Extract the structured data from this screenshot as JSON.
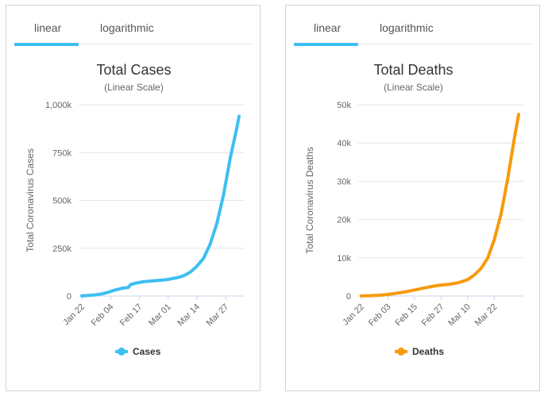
{
  "panels": [
    {
      "tabs": [
        "linear",
        "logarithmic"
      ],
      "active_tab": "linear",
      "accent_color": "#3dbff2",
      "chart_data": {
        "type": "line",
        "title": "Total Cases",
        "subtitle": "(Linear Scale)",
        "ylabel": "Total Coronavirus Cases",
        "xlabel": "",
        "ylim": [
          0,
          1000000
        ],
        "y_ticks": [
          0,
          250000,
          500000,
          750000,
          1000000
        ],
        "y_tick_labels": [
          "0",
          "250k",
          "500k",
          "750k",
          "1,000k"
        ],
        "x_tick_labels": [
          "Jan 22",
          "Feb 04",
          "Feb 17",
          "Mar 01",
          "Mar 14",
          "Mar 27"
        ],
        "grid": true,
        "legend_position": "bottom",
        "series": [
          {
            "name": "Cases",
            "color": "#3dbff2",
            "x": [
              "Jan 22",
              "Jan 25",
              "Jan 28",
              "Jan 31",
              "Feb 03",
              "Feb 06",
              "Feb 09",
              "Feb 12",
              "Feb 13",
              "Feb 16",
              "Feb 19",
              "Feb 22",
              "Feb 25",
              "Feb 28",
              "Mar 02",
              "Mar 05",
              "Mar 08",
              "Mar 11",
              "Mar 14",
              "Mar 17",
              "Mar 20",
              "Mar 23",
              "Mar 26",
              "Mar 29",
              "Apr 01",
              "Apr 02"
            ],
            "values": [
              555,
              2900,
              6000,
              11000,
              20000,
              31000,
              40000,
              45000,
              60000,
              69000,
              75000,
              78000,
              81000,
              84000,
              89000,
              96000,
              106000,
              125000,
              156000,
              198000,
              272000,
              380000,
              530000,
              720000,
              880000,
              940000
            ]
          }
        ]
      }
    },
    {
      "tabs": [
        "linear",
        "logarithmic"
      ],
      "active_tab": "linear",
      "accent_color": "#3dbff2",
      "chart_data": {
        "type": "line",
        "title": "Total Deaths",
        "subtitle": "(Linear Scale)",
        "ylabel": "Total Coronavirus Deaths",
        "xlabel": "",
        "ylim": [
          0,
          50000
        ],
        "y_ticks": [
          0,
          10000,
          20000,
          30000,
          40000,
          50000
        ],
        "y_tick_labels": [
          "0",
          "10k",
          "20k",
          "30k",
          "40k",
          "50k"
        ],
        "x_tick_labels": [
          "Jan 22",
          "Feb 03",
          "Feb 15",
          "Feb 27",
          "Mar 10",
          "Mar 22"
        ],
        "grid": true,
        "legend_position": "bottom",
        "series": [
          {
            "name": "Deaths",
            "color": "#f79a0e",
            "x": [
              "Jan 22",
              "Jan 27",
              "Feb 01",
              "Feb 06",
              "Feb 11",
              "Feb 16",
              "Feb 21",
              "Feb 26",
              "Mar 02",
              "Mar 06",
              "Mar 10",
              "Mar 13",
              "Mar 16",
              "Mar 19",
              "Mar 22",
              "Mar 25",
              "Mar 28",
              "Mar 31",
              "Apr 02"
            ],
            "values": [
              17,
              110,
              300,
              640,
              1100,
              1700,
              2300,
              2800,
              3100,
              3500,
              4300,
              5500,
              7200,
              9900,
              14700,
              21300,
              30500,
              41000,
              47500
            ]
          }
        ]
      }
    }
  ]
}
